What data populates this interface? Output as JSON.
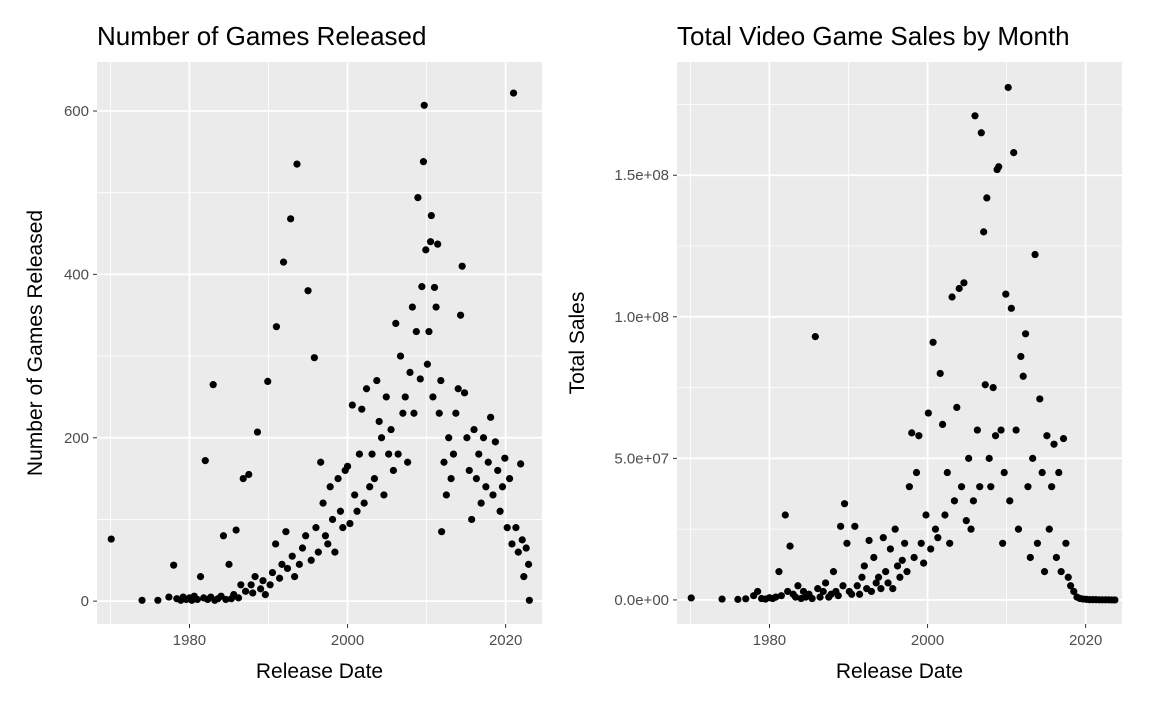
{
  "chart_data": [
    {
      "type": "scatter",
      "title": "Number of Games Released",
      "xlabel": "Release Date",
      "ylabel": "Number of Games Released",
      "x_type": "year",
      "xlim": [
        1968.3,
        2024.6
      ],
      "ylim": [
        -28,
        660
      ],
      "x_ticks": [
        1980,
        2000,
        2020
      ],
      "x_tick_labels": [
        "1980",
        "2000",
        "2020"
      ],
      "y_ticks": [
        0,
        200,
        400,
        600
      ],
      "y_tick_labels": [
        "0",
        "200",
        "400",
        "600"
      ],
      "grid": true,
      "points": [
        [
          1970.1,
          76
        ],
        [
          1974.0,
          1
        ],
        [
          1976.0,
          1
        ],
        [
          1977.4,
          5
        ],
        [
          1978.0,
          44
        ],
        [
          1978.4,
          3
        ],
        [
          1978.9,
          1
        ],
        [
          1979.2,
          5
        ],
        [
          1979.6,
          2
        ],
        [
          1980.0,
          4
        ],
        [
          1980.3,
          1
        ],
        [
          1980.6,
          6
        ],
        [
          1981.0,
          2
        ],
        [
          1981.4,
          30
        ],
        [
          1981.8,
          4
        ],
        [
          1982.0,
          172
        ],
        [
          1982.3,
          2
        ],
        [
          1982.7,
          5
        ],
        [
          1983.0,
          265
        ],
        [
          1983.2,
          1
        ],
        [
          1983.6,
          3
        ],
        [
          1984.0,
          6
        ],
        [
          1984.3,
          80
        ],
        [
          1984.6,
          2
        ],
        [
          1985.0,
          45
        ],
        [
          1985.3,
          3
        ],
        [
          1985.6,
          8
        ],
        [
          1985.9,
          87
        ],
        [
          1986.2,
          4
        ],
        [
          1986.5,
          20
        ],
        [
          1986.8,
          150
        ],
        [
          1987.1,
          12
        ],
        [
          1987.5,
          155
        ],
        [
          1987.8,
          20
        ],
        [
          1988.0,
          10
        ],
        [
          1988.3,
          30
        ],
        [
          1988.6,
          207
        ],
        [
          1989.0,
          15
        ],
        [
          1989.3,
          25
        ],
        [
          1989.6,
          8
        ],
        [
          1989.9,
          269
        ],
        [
          1990.2,
          20
        ],
        [
          1990.5,
          35
        ],
        [
          1990.9,
          70
        ],
        [
          1991.0,
          336
        ],
        [
          1991.4,
          28
        ],
        [
          1991.7,
          45
        ],
        [
          1991.9,
          415
        ],
        [
          1992.2,
          85
        ],
        [
          1992.4,
          40
        ],
        [
          1992.8,
          468
        ],
        [
          1993.0,
          55
        ],
        [
          1993.3,
          30
        ],
        [
          1993.6,
          535
        ],
        [
          1993.9,
          45
        ],
        [
          1994.3,
          65
        ],
        [
          1994.7,
          80
        ],
        [
          1995.0,
          380
        ],
        [
          1995.4,
          50
        ],
        [
          1995.8,
          298
        ],
        [
          1996.0,
          90
        ],
        [
          1996.3,
          60
        ],
        [
          1996.6,
          170
        ],
        [
          1996.9,
          120
        ],
        [
          1997.2,
          80
        ],
        [
          1997.5,
          70
        ],
        [
          1997.8,
          140
        ],
        [
          1998.1,
          100
        ],
        [
          1998.4,
          60
        ],
        [
          1998.8,
          150
        ],
        [
          1999.1,
          110
        ],
        [
          1999.4,
          90
        ],
        [
          1999.7,
          160
        ],
        [
          2000.0,
          165
        ],
        [
          2000.3,
          95
        ],
        [
          2000.6,
          240
        ],
        [
          2000.9,
          130
        ],
        [
          2001.2,
          110
        ],
        [
          2001.5,
          180
        ],
        [
          2001.8,
          235
        ],
        [
          2002.1,
          120
        ],
        [
          2002.4,
          260
        ],
        [
          2002.8,
          140
        ],
        [
          2003.1,
          180
        ],
        [
          2003.4,
          150
        ],
        [
          2003.7,
          270
        ],
        [
          2004.0,
          220
        ],
        [
          2004.3,
          200
        ],
        [
          2004.6,
          130
        ],
        [
          2004.9,
          250
        ],
        [
          2005.2,
          180
        ],
        [
          2005.5,
          210
        ],
        [
          2005.8,
          160
        ],
        [
          2006.1,
          340
        ],
        [
          2006.4,
          180
        ],
        [
          2006.7,
          300
        ],
        [
          2007.0,
          230
        ],
        [
          2007.3,
          250
        ],
        [
          2007.6,
          170
        ],
        [
          2007.9,
          280
        ],
        [
          2008.2,
          360
        ],
        [
          2008.4,
          230
        ],
        [
          2008.7,
          330
        ],
        [
          2008.9,
          494
        ],
        [
          2009.2,
          272
        ],
        [
          2009.4,
          385
        ],
        [
          2009.6,
          538
        ],
        [
          2009.7,
          607
        ],
        [
          2009.9,
          430
        ],
        [
          2010.1,
          290
        ],
        [
          2010.3,
          330
        ],
        [
          2010.5,
          440
        ],
        [
          2010.6,
          472
        ],
        [
          2010.8,
          250
        ],
        [
          2011.0,
          384
        ],
        [
          2011.2,
          360
        ],
        [
          2011.4,
          437
        ],
        [
          2011.6,
          230
        ],
        [
          2011.8,
          270
        ],
        [
          2011.9,
          85
        ],
        [
          2012.2,
          170
        ],
        [
          2012.5,
          130
        ],
        [
          2012.8,
          200
        ],
        [
          2013.1,
          150
        ],
        [
          2013.4,
          180
        ],
        [
          2013.7,
          230
        ],
        [
          2014.0,
          260
        ],
        [
          2014.3,
          350
        ],
        [
          2014.5,
          410
        ],
        [
          2014.8,
          255
        ],
        [
          2015.1,
          200
        ],
        [
          2015.4,
          160
        ],
        [
          2015.7,
          100
        ],
        [
          2016.0,
          210
        ],
        [
          2016.3,
          150
        ],
        [
          2016.6,
          180
        ],
        [
          2016.9,
          120
        ],
        [
          2017.2,
          200
        ],
        [
          2017.5,
          140
        ],
        [
          2017.8,
          170
        ],
        [
          2018.1,
          225
        ],
        [
          2018.4,
          130
        ],
        [
          2018.7,
          195
        ],
        [
          2019.0,
          160
        ],
        [
          2019.3,
          110
        ],
        [
          2019.6,
          140
        ],
        [
          2019.9,
          175
        ],
        [
          2020.2,
          90
        ],
        [
          2020.5,
          150
        ],
        [
          2020.8,
          70
        ],
        [
          2021.0,
          622
        ],
        [
          2021.3,
          90
        ],
        [
          2021.6,
          60
        ],
        [
          2021.9,
          168
        ],
        [
          2022.1,
          75
        ],
        [
          2022.3,
          30
        ],
        [
          2022.6,
          65
        ],
        [
          2022.9,
          45
        ],
        [
          2023.0,
          1
        ]
      ]
    },
    {
      "type": "scatter",
      "title": "Total Video Game Sales by Month",
      "xlabel": "Release Date",
      "ylabel": "Total Sales",
      "x_type": "year",
      "xlim": [
        1968.3,
        2024.6
      ],
      "ylim": [
        -8500000,
        190000000
      ],
      "x_ticks": [
        1980,
        2000,
        2020
      ],
      "x_tick_labels": [
        "1980",
        "2000",
        "2020"
      ],
      "y_ticks": [
        0,
        50000000,
        100000000,
        150000000
      ],
      "y_tick_labels": [
        "0.0e+00",
        "5.0e+07",
        "1.0e+08",
        "1.5e+08"
      ],
      "grid": true,
      "points": [
        [
          1970.1,
          700000
        ],
        [
          1974.0,
          300000
        ],
        [
          1976.0,
          200000
        ],
        [
          1977.0,
          400000
        ],
        [
          1978.0,
          1500000
        ],
        [
          1978.5,
          3000000
        ],
        [
          1979.0,
          500000
        ],
        [
          1979.5,
          300000
        ],
        [
          1980.0,
          800000
        ],
        [
          1980.4,
          500000
        ],
        [
          1980.8,
          1000000
        ],
        [
          1981.2,
          10000000
        ],
        [
          1981.5,
          1500000
        ],
        [
          1982.0,
          30000000
        ],
        [
          1982.3,
          3000000
        ],
        [
          1982.6,
          19000000
        ],
        [
          1983.0,
          2000000
        ],
        [
          1983.3,
          1000000
        ],
        [
          1983.6,
          5000000
        ],
        [
          1984.0,
          500000
        ],
        [
          1984.3,
          3000000
        ],
        [
          1984.6,
          1000000
        ],
        [
          1985.0,
          2000000
        ],
        [
          1985.4,
          500000
        ],
        [
          1985.8,
          93000000
        ],
        [
          1986.1,
          4000000
        ],
        [
          1986.4,
          1000000
        ],
        [
          1986.8,
          3000000
        ],
        [
          1987.1,
          6000000
        ],
        [
          1987.5,
          1000000
        ],
        [
          1987.8,
          2000000
        ],
        [
          1988.1,
          10000000
        ],
        [
          1988.4,
          3000000
        ],
        [
          1988.7,
          1500000
        ],
        [
          1989.0,
          26000000
        ],
        [
          1989.3,
          5000000
        ],
        [
          1989.5,
          34000000
        ],
        [
          1989.8,
          20000000
        ],
        [
          1990.1,
          3000000
        ],
        [
          1990.4,
          2000000
        ],
        [
          1990.8,
          26000000
        ],
        [
          1991.1,
          5000000
        ],
        [
          1991.4,
          2000000
        ],
        [
          1991.7,
          8000000
        ],
        [
          1992.0,
          12000000
        ],
        [
          1992.3,
          4000000
        ],
        [
          1992.6,
          21000000
        ],
        [
          1992.9,
          3000000
        ],
        [
          1993.2,
          15000000
        ],
        [
          1993.5,
          6000000
        ],
        [
          1993.8,
          8000000
        ],
        [
          1994.1,
          4000000
        ],
        [
          1994.4,
          22000000
        ],
        [
          1994.7,
          10000000
        ],
        [
          1995.0,
          6000000
        ],
        [
          1995.3,
          18000000
        ],
        [
          1995.6,
          4000000
        ],
        [
          1995.9,
          25000000
        ],
        [
          1996.2,
          12000000
        ],
        [
          1996.5,
          8000000
        ],
        [
          1996.8,
          14000000
        ],
        [
          1997.1,
          20000000
        ],
        [
          1997.4,
          10000000
        ],
        [
          1997.7,
          40000000
        ],
        [
          1998.0,
          59000000
        ],
        [
          1998.3,
          15000000
        ],
        [
          1998.6,
          45000000
        ],
        [
          1998.9,
          58000000
        ],
        [
          1999.2,
          20000000
        ],
        [
          1999.5,
          13000000
        ],
        [
          1999.8,
          30000000
        ],
        [
          2000.1,
          66000000
        ],
        [
          2000.4,
          18000000
        ],
        [
          2000.7,
          91000000
        ],
        [
          2001.0,
          25000000
        ],
        [
          2001.3,
          22000000
        ],
        [
          2001.6,
          80000000
        ],
        [
          2001.9,
          62000000
        ],
        [
          2002.2,
          30000000
        ],
        [
          2002.5,
          45000000
        ],
        [
          2002.8,
          20000000
        ],
        [
          2003.1,
          107000000
        ],
        [
          2003.4,
          35000000
        ],
        [
          2003.7,
          68000000
        ],
        [
          2004.0,
          110000000
        ],
        [
          2004.3,
          40000000
        ],
        [
          2004.6,
          112000000
        ],
        [
          2004.9,
          28000000
        ],
        [
          2005.2,
          50000000
        ],
        [
          2005.5,
          25000000
        ],
        [
          2005.8,
          35000000
        ],
        [
          2006.0,
          171000000
        ],
        [
          2006.3,
          60000000
        ],
        [
          2006.6,
          40000000
        ],
        [
          2006.8,
          165000000
        ],
        [
          2007.1,
          130000000
        ],
        [
          2007.3,
          76000000
        ],
        [
          2007.5,
          142000000
        ],
        [
          2007.8,
          50000000
        ],
        [
          2008.0,
          40000000
        ],
        [
          2008.3,
          75000000
        ],
        [
          2008.6,
          58000000
        ],
        [
          2008.8,
          152000000
        ],
        [
          2009.0,
          153000000
        ],
        [
          2009.3,
          60000000
        ],
        [
          2009.5,
          20000000
        ],
        [
          2009.7,
          45000000
        ],
        [
          2009.9,
          108000000
        ],
        [
          2010.2,
          181000000
        ],
        [
          2010.4,
          35000000
        ],
        [
          2010.6,
          103000000
        ],
        [
          2010.9,
          158000000
        ],
        [
          2011.2,
          60000000
        ],
        [
          2011.5,
          25000000
        ],
        [
          2011.8,
          86000000
        ],
        [
          2012.1,
          79000000
        ],
        [
          2012.4,
          94000000
        ],
        [
          2012.7,
          40000000
        ],
        [
          2013.0,
          15000000
        ],
        [
          2013.3,
          50000000
        ],
        [
          2013.6,
          122000000
        ],
        [
          2013.9,
          20000000
        ],
        [
          2014.2,
          71000000
        ],
        [
          2014.5,
          45000000
        ],
        [
          2014.8,
          10000000
        ],
        [
          2015.1,
          58000000
        ],
        [
          2015.4,
          25000000
        ],
        [
          2015.7,
          40000000
        ],
        [
          2016.0,
          55000000
        ],
        [
          2016.3,
          15000000
        ],
        [
          2016.6,
          45000000
        ],
        [
          2016.9,
          10000000
        ],
        [
          2017.2,
          57000000
        ],
        [
          2017.5,
          20000000
        ],
        [
          2017.8,
          8000000
        ],
        [
          2018.1,
          5000000
        ],
        [
          2018.5,
          3000000
        ],
        [
          2018.9,
          1000000
        ],
        [
          2019.3,
          500000
        ],
        [
          2019.7,
          300000
        ],
        [
          2020.1,
          200000
        ],
        [
          2020.5,
          100000
        ],
        [
          2020.9,
          100000
        ],
        [
          2021.3,
          100000
        ],
        [
          2021.7,
          50000
        ],
        [
          2022.1,
          50000
        ],
        [
          2022.5,
          50000
        ],
        [
          2022.9,
          50000
        ],
        [
          2023.3,
          0
        ],
        [
          2023.7,
          0
        ]
      ]
    }
  ]
}
